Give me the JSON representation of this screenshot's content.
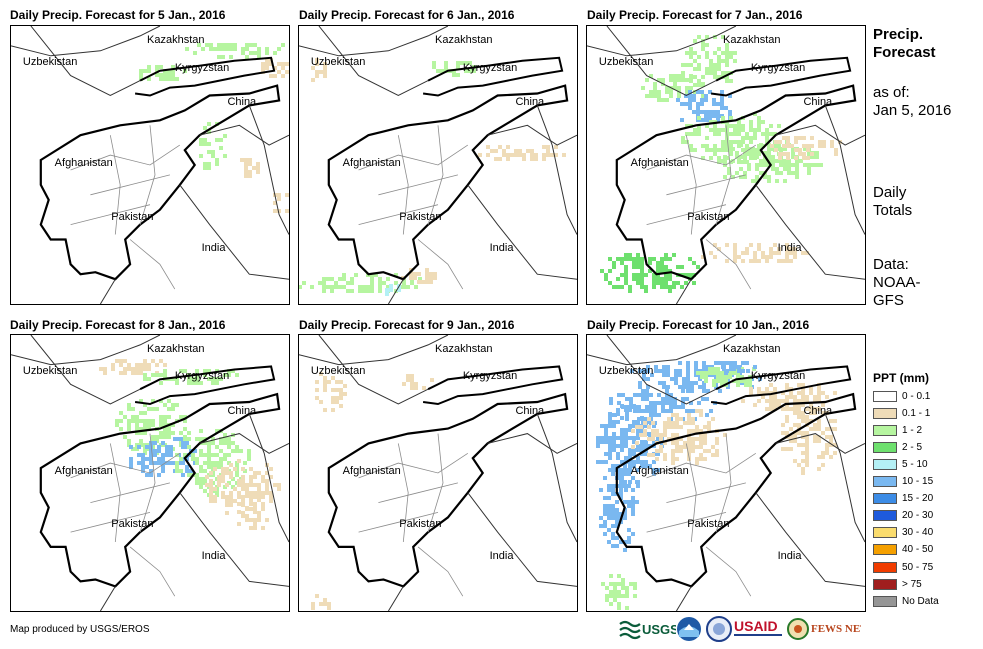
{
  "panels": [
    {
      "title": "Daily Precip. Forecast for 5 Jan., 2016"
    },
    {
      "title": "Daily Precip. Forecast for 6 Jan., 2016"
    },
    {
      "title": "Daily Precip. Forecast for 7 Jan., 2016"
    },
    {
      "title": "Daily Precip. Forecast for 8 Jan., 2016"
    },
    {
      "title": "Daily Precip. Forecast for 9 Jan., 2016"
    },
    {
      "title": "Daily Precip. Forecast for 10 Jan., 2016"
    }
  ],
  "map_labels": {
    "kazakhstan": "Kazakhstan",
    "uzbekistan": "Uzbekistan",
    "kyrgyzstan": "Kyrgyzstan",
    "china": "China",
    "afghanistan": "Afghanistan",
    "pakistan": "Pakistan",
    "india": "India"
  },
  "side": {
    "title_line1": "Precip.",
    "title_line2": "Forecast",
    "asof_line1": "as of:",
    "asof_line2": "Jan 5, 2016",
    "daily_line1": "Daily",
    "daily_line2": "Totals",
    "data_line1": "Data:",
    "data_line2": "NOAA-",
    "data_line3": "GFS"
  },
  "legend": {
    "title": "PPT (mm)",
    "items": [
      {
        "label": "0 - 0.1",
        "color": "#ffffff"
      },
      {
        "label": "0.1 - 1",
        "color": "#efdcb8"
      },
      {
        "label": "1 - 2",
        "color": "#b6f5a0"
      },
      {
        "label": "2 - 5",
        "color": "#6ee06e"
      },
      {
        "label": "5 - 10",
        "color": "#b4f0f5"
      },
      {
        "label": "10 - 15",
        "color": "#7ab8f0"
      },
      {
        "label": "15 - 20",
        "color": "#3c8ce6"
      },
      {
        "label": "20 - 30",
        "color": "#1e5adc"
      },
      {
        "label": "30 - 40",
        "color": "#fadc6e"
      },
      {
        "label": "40 - 50",
        "color": "#f5a000"
      },
      {
        "label": "50 - 75",
        "color": "#f03c00"
      },
      {
        "label": "> 75",
        "color": "#a01e1e"
      },
      {
        "label": "No Data",
        "color": "#969696"
      }
    ]
  },
  "footer": "Map produced by USGS/EROS",
  "logos": {
    "usgs": "USGS",
    "usaid": "USAID",
    "fewsnet": "FEWS NET"
  }
}
